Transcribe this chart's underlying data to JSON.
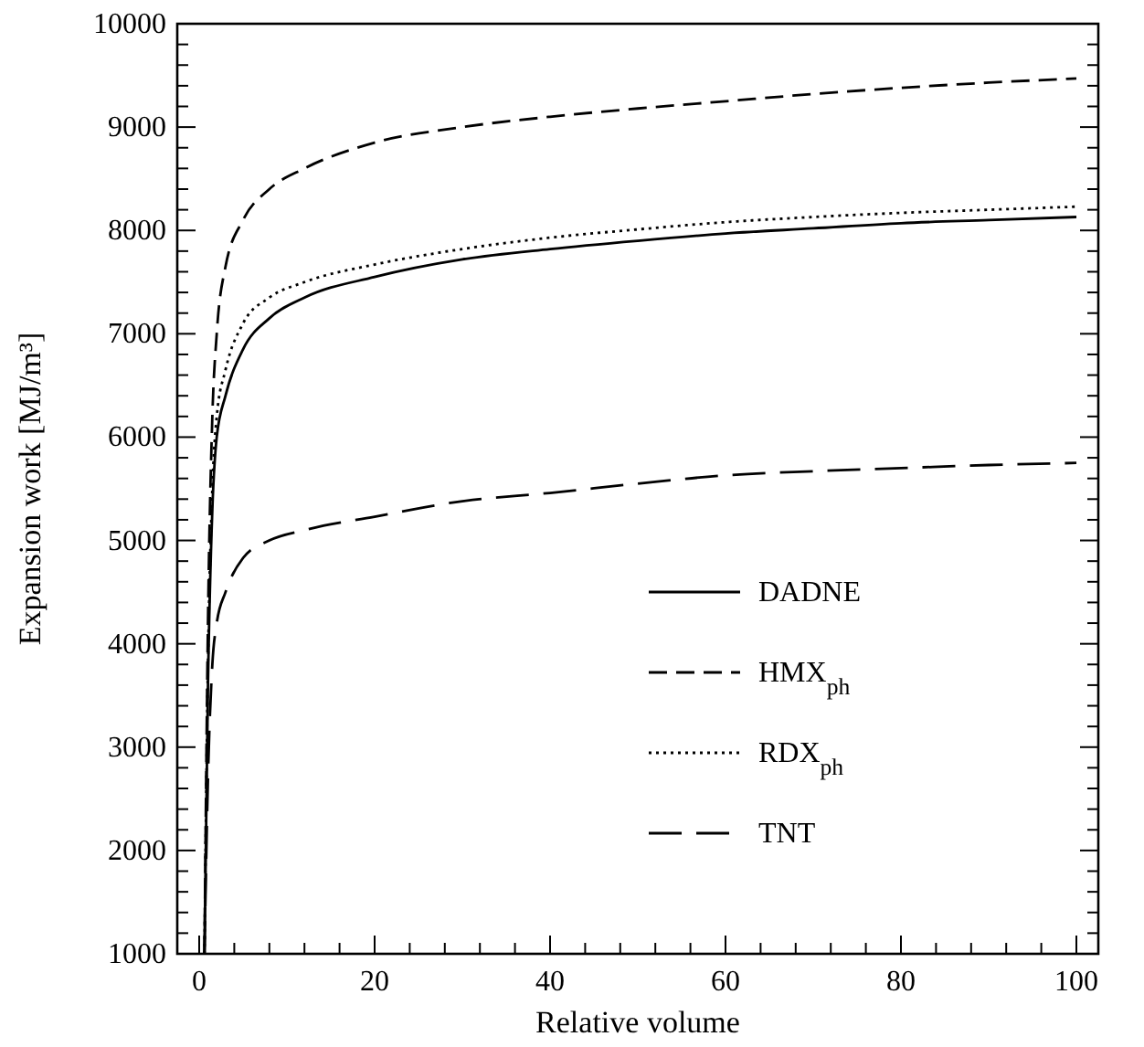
{
  "chart_data": {
    "type": "line",
    "xlabel": "Relative volume",
    "ylabel": "Expansion work [MJ/m³]",
    "xlim": [
      -2.5,
      102.5
    ],
    "ylim": [
      1000,
      10000
    ],
    "xticks": [
      0,
      {
        "value": 4,
        "label": null
      },
      {
        "value": 8,
        "label": null
      },
      {
        "value": 12,
        "label": null
      },
      {
        "value": 16,
        "label": null
      },
      20,
      {
        "value": 24,
        "label": null
      },
      {
        "value": 28,
        "label": null
      },
      {
        "value": 32,
        "label": null
      },
      {
        "value": 36,
        "label": null
      },
      40,
      {
        "value": 44,
        "label": null
      },
      {
        "value": 48,
        "label": null
      },
      {
        "value": 52,
        "label": null
      },
      {
        "value": 56,
        "label": null
      },
      60,
      {
        "value": 64,
        "label": null
      },
      {
        "value": 68,
        "label": null
      },
      {
        "value": 72,
        "label": null
      },
      {
        "value": 76,
        "label": null
      },
      80,
      {
        "value": 84,
        "label": null
      },
      {
        "value": 88,
        "label": null
      },
      {
        "value": 92,
        "label": null
      },
      {
        "value": 96,
        "label": null
      },
      100
    ],
    "yticks": [
      1000,
      {
        "value": 1200,
        "label": null
      },
      {
        "value": 1400,
        "label": null
      },
      {
        "value": 1600,
        "label": null
      },
      {
        "value": 1800,
        "label": null
      },
      2000,
      {
        "value": 2200,
        "label": null
      },
      {
        "value": 2400,
        "label": null
      },
      {
        "value": 2600,
        "label": null
      },
      {
        "value": 2800,
        "label": null
      },
      3000,
      {
        "value": 3200,
        "label": null
      },
      {
        "value": 3400,
        "label": null
      },
      {
        "value": 3600,
        "label": null
      },
      {
        "value": 3800,
        "label": null
      },
      4000,
      {
        "value": 4200,
        "label": null
      },
      {
        "value": 4400,
        "label": null
      },
      {
        "value": 4600,
        "label": null
      },
      {
        "value": 4800,
        "label": null
      },
      5000,
      {
        "value": 5200,
        "label": null
      },
      {
        "value": 5400,
        "label": null
      },
      {
        "value": 5600,
        "label": null
      },
      {
        "value": 5800,
        "label": null
      },
      6000,
      {
        "value": 6200,
        "label": null
      },
      {
        "value": 6400,
        "label": null
      },
      {
        "value": 6600,
        "label": null
      },
      {
        "value": 6800,
        "label": null
      },
      7000,
      {
        "value": 7200,
        "label": null
      },
      {
        "value": 7400,
        "label": null
      },
      {
        "value": 7600,
        "label": null
      },
      {
        "value": 7800,
        "label": null
      },
      8000,
      {
        "value": 8200,
        "label": null
      },
      {
        "value": 8400,
        "label": null
      },
      {
        "value": 8600,
        "label": null
      },
      {
        "value": 8800,
        "label": null
      },
      9000,
      {
        "value": 9200,
        "label": null
      },
      {
        "value": 9400,
        "label": null
      },
      {
        "value": 9600,
        "label": null
      },
      {
        "value": 9800,
        "label": null
      },
      10000
    ],
    "legend": "right",
    "grid": false,
    "x": [
      0.6,
      1,
      1.5,
      2,
      3,
      5,
      8,
      12,
      20,
      30,
      40,
      50,
      60,
      70,
      80,
      90,
      100
    ],
    "series": [
      {
        "name": "DADNE",
        "color": "#000000",
        "line_style": "solid",
        "values": [
          1000,
          3600,
          5300,
          6000,
          6400,
          6850,
          7150,
          7350,
          7550,
          7720,
          7820,
          7900,
          7970,
          8020,
          8070,
          8100,
          8130
        ]
      },
      {
        "name": "HMX$_{ph}$",
        "color": "#000000",
        "line_style": "dashed",
        "values": [
          1000,
          4200,
          6200,
          7000,
          7650,
          8100,
          8400,
          8600,
          8850,
          9000,
          9100,
          9180,
          9250,
          9320,
          9380,
          9430,
          9470
        ]
      },
      {
        "name": "RDX$_{ph}$",
        "color": "#000000",
        "line_style": "dotted",
        "values": [
          1000,
          3800,
          5500,
          6200,
          6650,
          7100,
          7350,
          7500,
          7670,
          7820,
          7930,
          8010,
          8080,
          8130,
          8170,
          8200,
          8230
        ]
      },
      {
        "name": "TNT",
        "color": "#000000",
        "line_style": "dashed",
        "values": [
          1000,
          2700,
          3800,
          4200,
          4500,
          4830,
          5000,
          5100,
          5230,
          5380,
          5460,
          5550,
          5630,
          5670,
          5700,
          5730,
          5750
        ]
      }
    ]
  }
}
